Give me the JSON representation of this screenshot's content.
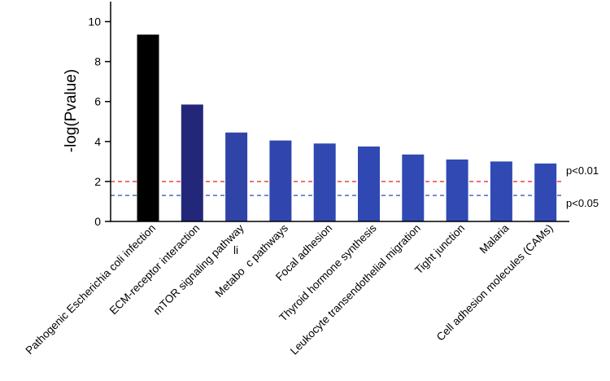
{
  "chart_data": {
    "type": "bar",
    "title": "",
    "xlabel": "",
    "ylabel": "-log(Pvalue)",
    "ylim": [
      0,
      11
    ],
    "yticks": [
      0,
      2,
      4,
      6,
      8,
      10
    ],
    "categories": [
      "Pathogenic Escherichia coli infection",
      "ECM-receptor interaction",
      "mTOR signaling pathway",
      "Metabo  c pathways",
      "Focal adhesion",
      "Thyroid hormone synthesis",
      "Leukocyte transendothelial migration",
      "Tight junction",
      "Malaria",
      "Cell adhesion molecules (CAMs)"
    ],
    "values": [
      9.35,
      5.85,
      4.45,
      4.05,
      3.9,
      3.75,
      3.35,
      3.1,
      3.0,
      2.9
    ],
    "bar_colors": [
      "#000000",
      "#23277a",
      "#3044a8",
      "#3046ae",
      "#3048b0",
      "#3049b2",
      "#3049b3",
      "#3049b3",
      "#3049b3",
      "#3049b3"
    ],
    "grid": false,
    "annotations": [
      {
        "type": "hline",
        "y": 2.0,
        "color": "#e53030",
        "style": "dashed",
        "label": "p<0.01"
      },
      {
        "type": "hline",
        "y": 1.3,
        "color": "#3a5bc0",
        "style": "dashed",
        "label": "p<0.05"
      }
    ],
    "stray_text": "li"
  }
}
